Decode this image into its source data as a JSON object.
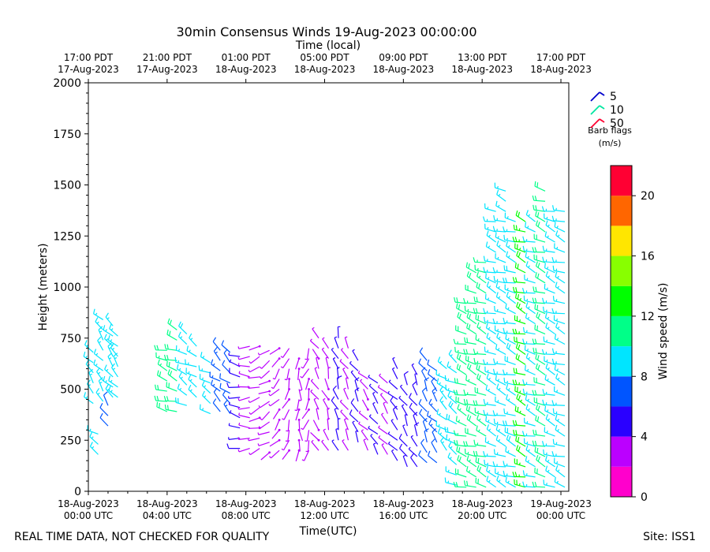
{
  "chart_data": {
    "type": "wind-barb-time-height",
    "title": "30min Consensus Winds 19-Aug-2023 00:00:00",
    "top_axis_title": "Time (local)",
    "xlabel": "Time(UTC)",
    "ylabel": "Height (meters)",
    "x_range_hours_since_utc_start": [
      0,
      24.4
    ],
    "ylim": [
      0,
      2000
    ],
    "y_ticks": [
      0,
      250,
      500,
      750,
      1000,
      1250,
      1500,
      1750,
      2000
    ],
    "bottom_ticks": [
      {
        "hour": 0,
        "line1": "18-Aug-2023",
        "line2": "00:00 UTC"
      },
      {
        "hour": 4,
        "line1": "18-Aug-2023",
        "line2": "04:00 UTC"
      },
      {
        "hour": 8,
        "line1": "18-Aug-2023",
        "line2": "08:00 UTC"
      },
      {
        "hour": 12,
        "line1": "18-Aug-2023",
        "line2": "12:00 UTC"
      },
      {
        "hour": 16,
        "line1": "18-Aug-2023",
        "line2": "16:00 UTC"
      },
      {
        "hour": 20,
        "line1": "18-Aug-2023",
        "line2": "20:00 UTC"
      },
      {
        "hour": 24,
        "line1": "19-Aug-2023",
        "line2": "00:00 UTC"
      }
    ],
    "top_ticks": [
      {
        "hour": 0,
        "line1": "17:00 PDT",
        "line2": "17-Aug-2023"
      },
      {
        "hour": 4,
        "line1": "21:00 PDT",
        "line2": "17-Aug-2023"
      },
      {
        "hour": 8,
        "line1": "01:00 PDT",
        "line2": "18-Aug-2023"
      },
      {
        "hour": 12,
        "line1": "05:00 PDT",
        "line2": "18-Aug-2023"
      },
      {
        "hour": 16,
        "line1": "09:00 PDT",
        "line2": "18-Aug-2023"
      },
      {
        "hour": 20,
        "line1": "13:00 PDT",
        "line2": "18-Aug-2023"
      },
      {
        "hour": 24,
        "line1": "17:00 PDT",
        "line2": "18-Aug-2023"
      }
    ],
    "legend": {
      "title_line1": "Barb flags",
      "title_line2": "(m/s)",
      "entries": [
        {
          "label": "5",
          "color": "#0000cc"
        },
        {
          "label": "10",
          "color": "#00e6a0"
        },
        {
          "label": "50",
          "color": "#ff0030"
        }
      ]
    },
    "colorbar": {
      "label": "Wind speed (m/s)",
      "range": [
        0,
        22
      ],
      "ticks": [
        0,
        4,
        8,
        12,
        16,
        20
      ],
      "bins": [
        {
          "from": 0,
          "to": 2,
          "color": "#ff00cc"
        },
        {
          "from": 2,
          "to": 4,
          "color": "#bb00ff"
        },
        {
          "from": 4,
          "to": 6,
          "color": "#2a00ff"
        },
        {
          "from": 6,
          "to": 8,
          "color": "#0055ff"
        },
        {
          "from": 8,
          "to": 10,
          "color": "#00e5ff"
        },
        {
          "from": 10,
          "to": 12,
          "color": "#00ff88"
        },
        {
          "from": 12,
          "to": 14,
          "color": "#00ff00"
        },
        {
          "from": 14,
          "to": 16,
          "color": "#88ff00"
        },
        {
          "from": 16,
          "to": 18,
          "color": "#ffe600"
        },
        {
          "from": 18,
          "to": 20,
          "color": "#ff6600"
        },
        {
          "from": 20,
          "to": 22,
          "color": "#ff0033"
        }
      ]
    },
    "profiles": [
      {
        "hour": 0.25,
        "bottom": 430,
        "top": 700,
        "speed": 8.6,
        "dir": 320
      },
      {
        "hour": 0.75,
        "bottom": 440,
        "top": 860,
        "speed": 8.8,
        "dir": 320
      },
      {
        "hour": 1.0,
        "bottom": 320,
        "top": 440,
        "speed": 6.0,
        "dir": 330
      },
      {
        "hour": 0.5,
        "bottom": 180,
        "top": 290,
        "speed": 8.5,
        "dir": 300
      },
      {
        "hour": 1.25,
        "bottom": 460,
        "top": 830,
        "speed": 9.0,
        "dir": 320
      },
      {
        "hour": 1.5,
        "bottom": 460,
        "top": 780,
        "speed": 8.8,
        "dir": 320
      },
      {
        "hour": 4.0,
        "bottom": 390,
        "top": 710,
        "speed": 10.5,
        "dir": 290
      },
      {
        "hour": 4.5,
        "bottom": 390,
        "top": 810,
        "speed": 10.8,
        "dir": 290
      },
      {
        "hour": 5.0,
        "bottom": 420,
        "top": 780,
        "speed": 9.5,
        "dir": 300
      },
      {
        "hour": 5.5,
        "bottom": 460,
        "top": 750,
        "speed": 9.0,
        "dir": 300
      },
      {
        "hour": 6.2,
        "bottom": 380,
        "top": 640,
        "speed": 8.6,
        "dir": 300
      },
      {
        "hour": 6.7,
        "bottom": 390,
        "top": 690,
        "speed": 7.5,
        "dir": 310
      },
      {
        "hour": 7.2,
        "bottom": 380,
        "top": 720,
        "speed": 7.0,
        "dir": 310
      },
      {
        "hour": 7.7,
        "bottom": 210,
        "top": 700,
        "speed": 4.5,
        "dir": 280
      },
      {
        "hour": 8.2,
        "bottom": 210,
        "top": 720,
        "speed": 3.5,
        "dir": 270
      },
      {
        "hour": 8.7,
        "bottom": 210,
        "top": 720,
        "speed": 3.0,
        "dir": 250
      },
      {
        "hour": 9.2,
        "bottom": 190,
        "top": 720,
        "speed": 2.8,
        "dir": 240
      },
      {
        "hour": 9.7,
        "bottom": 200,
        "top": 700,
        "speed": 2.5,
        "dir": 220
      },
      {
        "hour": 10.2,
        "bottom": 200,
        "top": 700,
        "speed": 2.5,
        "dir": 200
      },
      {
        "hour": 10.7,
        "bottom": 200,
        "top": 690,
        "speed": 2.2,
        "dir": 180
      },
      {
        "hour": 11.2,
        "bottom": 200,
        "top": 720,
        "speed": 2.5,
        "dir": 200
      },
      {
        "hour": 11.7,
        "bottom": 200,
        "top": 750,
        "speed": 3.2,
        "dir": 330
      },
      {
        "hour": 12.2,
        "bottom": 200,
        "top": 720,
        "speed": 3.0,
        "dir": 340
      },
      {
        "hour": 12.7,
        "bottom": 200,
        "top": 750,
        "speed": 4.5,
        "dir": 340
      },
      {
        "hour": 13.2,
        "bottom": 200,
        "top": 740,
        "speed": 3.5,
        "dir": 330
      },
      {
        "hour": 13.7,
        "bottom": 240,
        "top": 640,
        "speed": 5.0,
        "dir": 330
      },
      {
        "hour": 14.2,
        "bottom": 200,
        "top": 560,
        "speed": 3.0,
        "dir": 320
      },
      {
        "hour": 14.7,
        "bottom": 180,
        "top": 550,
        "speed": 4.0,
        "dir": 320
      },
      {
        "hour": 15.2,
        "bottom": 180,
        "top": 560,
        "speed": 3.8,
        "dir": 320
      },
      {
        "hour": 15.7,
        "bottom": 150,
        "top": 600,
        "speed": 4.5,
        "dir": 320
      },
      {
        "hour": 16.2,
        "bottom": 120,
        "top": 560,
        "speed": 4.5,
        "dir": 330
      },
      {
        "hour": 16.7,
        "bottom": 120,
        "top": 580,
        "speed": 5.5,
        "dir": 330
      },
      {
        "hour": 17.2,
        "bottom": 140,
        "top": 660,
        "speed": 6.5,
        "dir": 330
      },
      {
        "hour": 17.7,
        "bottom": 140,
        "top": 620,
        "speed": 7.5,
        "dir": 320
      },
      {
        "hour": 18.2,
        "bottom": 200,
        "top": 620,
        "speed": 8.5,
        "dir": 310
      },
      {
        "hour": 18.7,
        "bottom": 30,
        "top": 640,
        "speed": 9.5,
        "dir": 300
      },
      {
        "hour": 19.2,
        "bottom": 20,
        "top": 950,
        "speed": 10.5,
        "dir": 290
      },
      {
        "hour": 19.7,
        "bottom": 20,
        "top": 1070,
        "speed": 10.5,
        "dir": 290
      },
      {
        "hour": 20.2,
        "bottom": 20,
        "top": 1160,
        "speed": 10.0,
        "dir": 290
      },
      {
        "hour": 20.7,
        "bottom": 20,
        "top": 1380,
        "speed": 9.0,
        "dir": 290
      },
      {
        "hour": 21.2,
        "bottom": 20,
        "top": 1470,
        "speed": 8.8,
        "dir": 290
      },
      {
        "hour": 21.7,
        "bottom": 20,
        "top": 1360,
        "speed": 9.5,
        "dir": 290
      },
      {
        "hour": 22.2,
        "bottom": 20,
        "top": 1340,
        "speed": 12.5,
        "dir": 290
      },
      {
        "hour": 22.7,
        "bottom": 20,
        "top": 1320,
        "speed": 9.0,
        "dir": 290
      },
      {
        "hour": 23.2,
        "bottom": 20,
        "top": 1500,
        "speed": 11.0,
        "dir": 290
      },
      {
        "hour": 23.7,
        "bottom": 20,
        "top": 1390,
        "speed": 9.2,
        "dir": 290
      },
      {
        "hour": 24.2,
        "bottom": 20,
        "top": 1390,
        "speed": 9.0,
        "dir": 290
      }
    ]
  },
  "footer": {
    "left": "REAL TIME DATA, NOT CHECKED FOR QUALITY",
    "right": "Site: ISS1"
  }
}
